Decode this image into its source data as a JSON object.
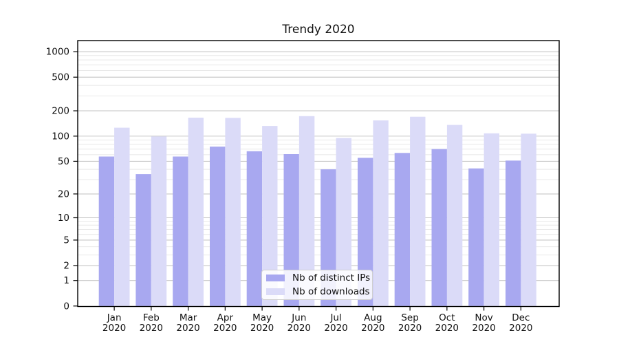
{
  "chart_data": {
    "type": "bar",
    "title": "Trendy 2020",
    "categories": [
      "Jan",
      "Feb",
      "Mar",
      "Apr",
      "May",
      "Jun",
      "Jul",
      "Aug",
      "Sep",
      "Oct",
      "Nov",
      "Dec"
    ],
    "year": "2020",
    "series": [
      {
        "name": "Nb of distinct IPs",
        "color": "#a8a8f0",
        "values": [
          57,
          35,
          57,
          75,
          66,
          61,
          40,
          55,
          63,
          70,
          41,
          51
        ]
      },
      {
        "name": "Nb of downloads",
        "color": "#dbdbf8",
        "values": [
          126,
          99,
          166,
          165,
          132,
          173,
          95,
          154,
          170,
          136,
          108,
          107
        ]
      }
    ],
    "y_scale": "log10(value+1)",
    "y_ticks": [
      0,
      1,
      2,
      5,
      10,
      20,
      50,
      100,
      200,
      500,
      1000
    ],
    "y_minor_ticks": [
      3,
      4,
      6,
      7,
      8,
      9,
      30,
      40,
      60,
      70,
      80,
      90,
      300,
      400,
      600,
      700,
      800,
      900
    ],
    "ylim": [
      0,
      1350
    ],
    "xlabel": "",
    "ylabel": "",
    "grid": true,
    "legend_position": "lower center inside",
    "colors": {
      "major_grid": "#c6c6c6",
      "minor_grid": "#e8e8e8",
      "spine": "#000000",
      "text": "#111111"
    }
  }
}
